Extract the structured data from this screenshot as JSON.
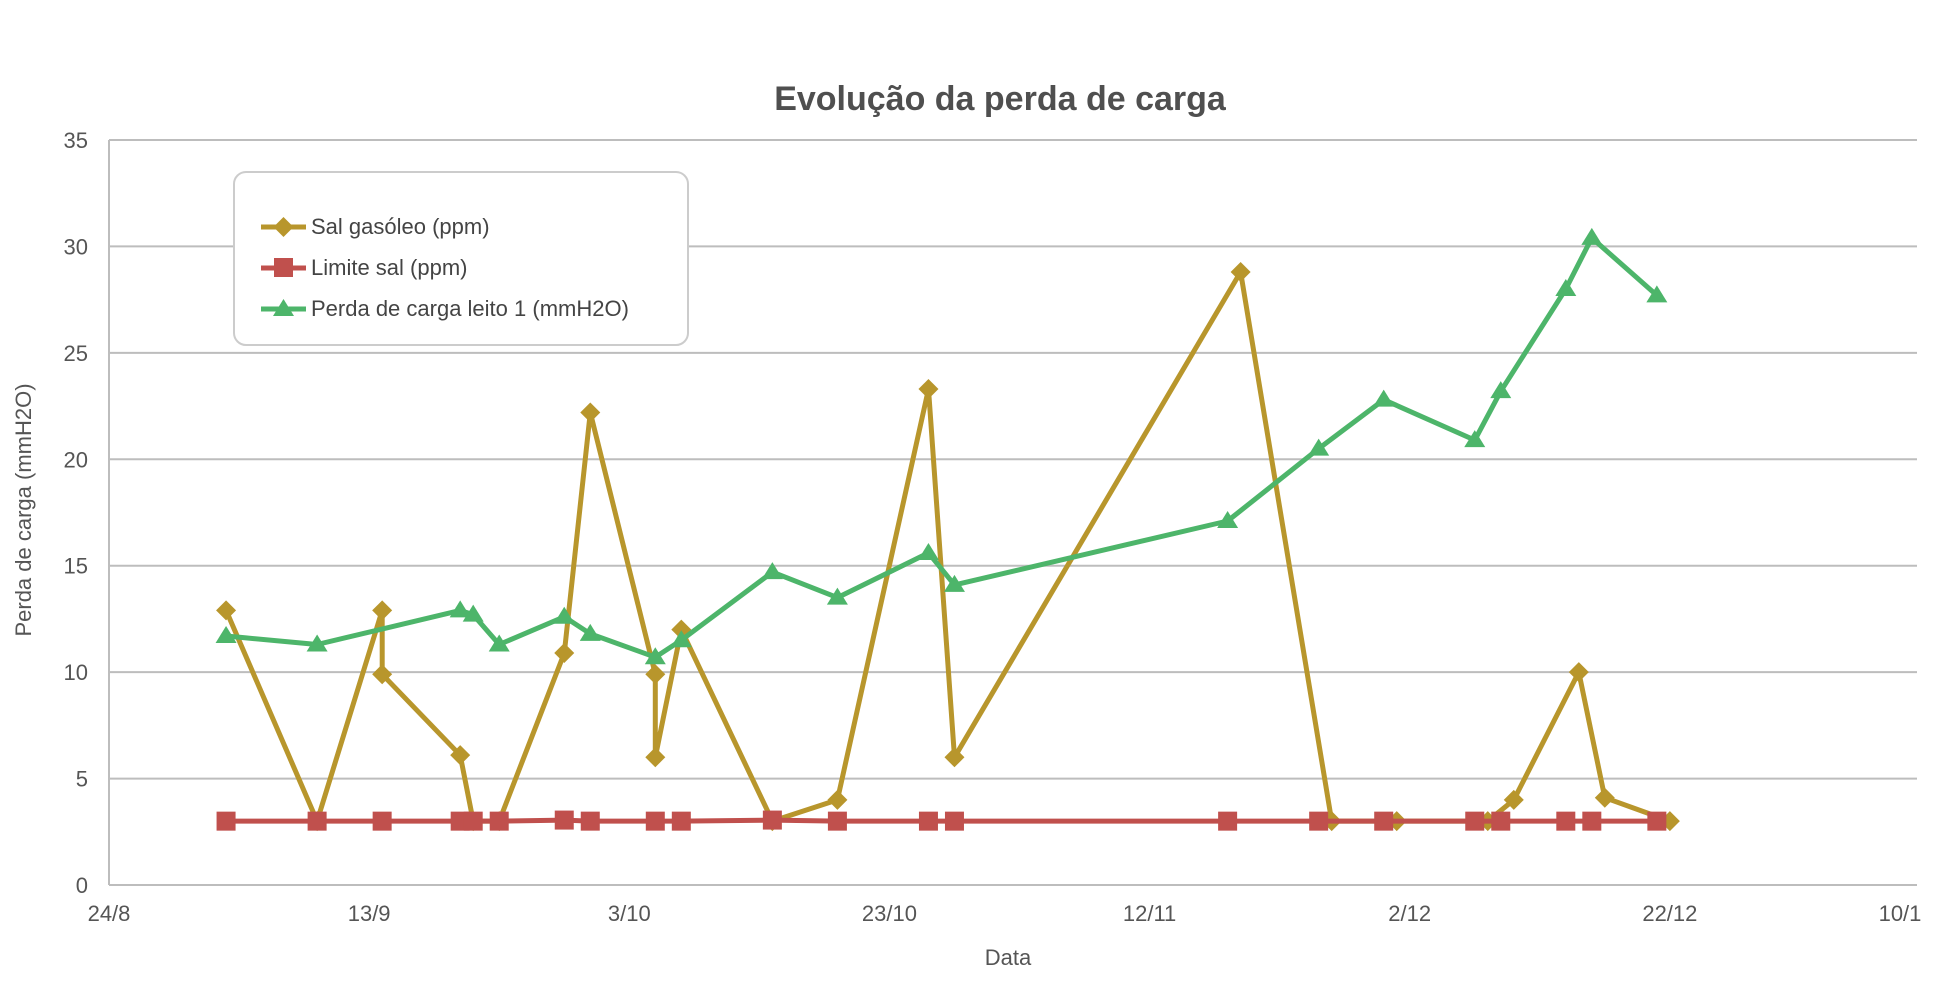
{
  "chart_data": {
    "type": "line",
    "title": "Evolução da perda de carga",
    "xlabel": "Data",
    "ylabel": "Perda de carga (mmH2O)",
    "xlim": [
      0,
      139
    ],
    "ylim": [
      0,
      35
    ],
    "x_tick_values": [
      0,
      20,
      40,
      60,
      80,
      100,
      120,
      140
    ],
    "x_tick_labels": [
      "24/8",
      "13/9",
      "3/10",
      "23/10",
      "12/11",
      "2/12",
      "22/12",
      "10/1"
    ],
    "y_ticks": [
      0,
      5,
      10,
      15,
      20,
      25,
      30,
      35
    ],
    "y_tick_labels": [
      "0",
      "5",
      "10",
      "15",
      "20",
      "25",
      "30",
      "35"
    ],
    "legend_position": "top-left",
    "series": [
      {
        "name": "Sal gasóleo (ppm)",
        "color": "#b8962c",
        "marker": "diamond",
        "x": [
          9,
          16,
          21,
          21,
          27,
          28,
          30,
          35,
          37,
          42,
          42,
          44,
          51,
          56,
          63,
          65,
          87,
          94,
          99,
          106,
          108,
          113,
          115,
          120
        ],
        "y": [
          12.9,
          3,
          12.9,
          9.9,
          6.1,
          3,
          3,
          10.9,
          22.2,
          9.9,
          6,
          12,
          3,
          4,
          23.3,
          6,
          28.8,
          3,
          3,
          3,
          4,
          10,
          4.1,
          3
        ]
      },
      {
        "name": "Limite sal (ppm)",
        "color": "#c0504d",
        "marker": "square",
        "x": [
          9,
          16,
          21,
          27,
          28,
          30,
          35,
          37,
          42,
          44,
          51,
          56,
          63,
          65,
          86,
          93,
          98,
          105,
          107,
          112,
          114,
          119
        ],
        "y": [
          3,
          3,
          3,
          3,
          3,
          3,
          3.05,
          3,
          3,
          3,
          3.05,
          3,
          3,
          3,
          3,
          3,
          3,
          3,
          3,
          3,
          3,
          3
        ]
      },
      {
        "name": "Perda de carga leito 1 (mmH2O)",
        "color": "#4db56a",
        "marker": "triangle",
        "x": [
          9,
          16,
          27,
          28,
          30,
          35,
          37,
          42,
          44,
          51,
          56,
          63,
          65,
          86,
          93,
          98,
          105,
          107,
          112,
          114,
          119
        ],
        "y": [
          11.7,
          11.3,
          12.9,
          12.7,
          11.3,
          12.6,
          11.8,
          10.7,
          11.5,
          14.7,
          13.5,
          15.6,
          14.1,
          17.1,
          20.5,
          22.8,
          20.9,
          23.2,
          28,
          30.4,
          27.7
        ]
      }
    ]
  }
}
